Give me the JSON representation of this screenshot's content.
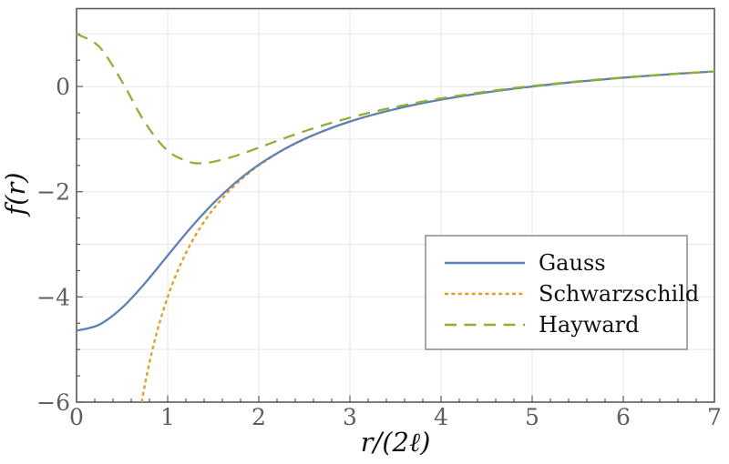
{
  "figure": {
    "background": "#ffffff",
    "frame_color": "#5a5a5a",
    "grid_color": "#e6e6e6",
    "tick_label_color": "#5e5e5e",
    "legend_border_color": "#8a8a8a"
  },
  "axes": {
    "x_label": "r/(2ℓ)",
    "y_label": "f(r)",
    "x_tick_values": [
      0,
      1,
      2,
      3,
      4,
      5,
      6,
      7
    ],
    "x_tick_labels": [
      "0",
      "1",
      "2",
      "3",
      "4",
      "5",
      "6",
      "7"
    ],
    "y_tick_values": [
      0,
      -2,
      -4,
      -6
    ],
    "y_tick_labels": [
      "0",
      "−2",
      "−4",
      "−6"
    ],
    "x_minor_step": 0.2,
    "y_minor_step": 0.5,
    "x_gridlines": [
      1,
      2,
      3,
      4,
      5,
      6
    ],
    "y_gridlines": [
      1,
      0,
      -1,
      -2,
      -3,
      -4,
      -5
    ]
  },
  "chart_data": {
    "type": "line",
    "title": "",
    "xlabel": "r/(2ℓ)",
    "ylabel": "f(r)",
    "xlim": [
      0,
      7
    ],
    "ylim": [
      -6,
      1.48
    ],
    "grid": true,
    "legend_position": "lower right",
    "series": [
      {
        "name": "Gauss",
        "color": "#5e81b5",
        "style": "solid",
        "points": [
          [
            0,
            -4.642
          ],
          [
            0.25,
            -4.527
          ],
          [
            0.5,
            -4.205
          ],
          [
            0.75,
            -3.741
          ],
          [
            1,
            -3.214
          ],
          [
            1.25,
            -2.692
          ],
          [
            1.5,
            -2.22
          ],
          [
            1.75,
            -1.819
          ],
          [
            2,
            -1.488
          ],
          [
            2.25,
            -1.219
          ],
          [
            2.5,
            -0.999
          ],
          [
            2.75,
            -0.818
          ],
          [
            3,
            -0.667
          ],
          [
            3.25,
            -0.538
          ],
          [
            3.5,
            -0.429
          ],
          [
            3.75,
            -0.333
          ],
          [
            4,
            -0.25
          ],
          [
            4.25,
            -0.176
          ],
          [
            4.5,
            -0.111
          ],
          [
            4.75,
            -0.053
          ],
          [
            5,
            0
          ],
          [
            5.25,
            0.048
          ],
          [
            5.5,
            0.091
          ],
          [
            5.75,
            0.13
          ],
          [
            6,
            0.167
          ],
          [
            6.25,
            0.2
          ],
          [
            6.5,
            0.231
          ],
          [
            6.75,
            0.259
          ],
          [
            7,
            0.286
          ]
        ]
      },
      {
        "name": "Schwarzschild",
        "color": "#e19c24",
        "style": "dotted",
        "points": [
          [
            0.714,
            -6
          ],
          [
            0.75,
            -5.667
          ],
          [
            0.8,
            -5.25
          ],
          [
            0.85,
            -4.882
          ],
          [
            0.9,
            -4.556
          ],
          [
            1,
            -4
          ],
          [
            1.1,
            -3.545
          ],
          [
            1.2,
            -3.167
          ],
          [
            1.3,
            -2.846
          ],
          [
            1.4,
            -2.571
          ],
          [
            1.5,
            -2.333
          ],
          [
            1.6,
            -2.125
          ],
          [
            1.7,
            -1.941
          ],
          [
            1.8,
            -1.778
          ],
          [
            1.9,
            -1.632
          ],
          [
            2,
            -1.5
          ],
          [
            2.25,
            -1.222
          ],
          [
            2.5,
            -1
          ],
          [
            2.75,
            -0.818
          ],
          [
            3,
            -0.667
          ],
          [
            3.25,
            -0.538
          ],
          [
            3.5,
            -0.429
          ],
          [
            3.75,
            -0.333
          ],
          [
            4,
            -0.25
          ],
          [
            4.5,
            -0.111
          ],
          [
            5,
            0
          ],
          [
            5.5,
            0.091
          ],
          [
            6,
            0.167
          ],
          [
            6.5,
            0.231
          ],
          [
            7,
            0.286
          ]
        ]
      },
      {
        "name": "Hayward",
        "color": "#8fb032",
        "style": "dashed",
        "points": [
          [
            0,
            1
          ],
          [
            0.25,
            0.753
          ],
          [
            0.5,
            0.091
          ],
          [
            0.75,
            -0.682
          ],
          [
            1,
            -1.222
          ],
          [
            1.25,
            -1.439
          ],
          [
            1.375,
            -1.456
          ],
          [
            1.5,
            -1.432
          ],
          [
            1.75,
            -1.317
          ],
          [
            2,
            -1.162
          ],
          [
            2.25,
            -1.002
          ],
          [
            2.5,
            -0.852
          ],
          [
            2.75,
            -0.715
          ],
          [
            3,
            -0.593
          ],
          [
            3.25,
            -0.484
          ],
          [
            3.5,
            -0.388
          ],
          [
            3.75,
            -0.302
          ],
          [
            4,
            -0.226
          ],
          [
            4.25,
            -0.158
          ],
          [
            4.5,
            -0.096
          ],
          [
            4.75,
            -0.04
          ],
          [
            5,
            0.01
          ],
          [
            5.25,
            0.055
          ],
          [
            5.5,
            0.098
          ],
          [
            5.75,
            0.136
          ],
          [
            6,
            0.171
          ],
          [
            6.25,
            0.204
          ],
          [
            6.5,
            0.234
          ],
          [
            6.75,
            0.262
          ],
          [
            7,
            0.288
          ]
        ]
      }
    ]
  }
}
